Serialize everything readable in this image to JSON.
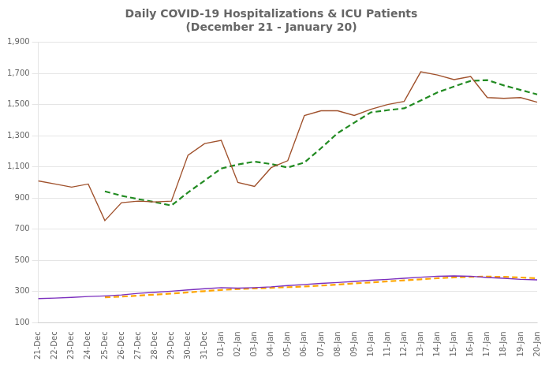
{
  "chart_data": {
    "type": "line",
    "title": "Daily COVID-19 Hospitalizations & ICU Patients",
    "subtitle": "(December 21 - January 20)",
    "categories": [
      "21-Dec",
      "22-Dec",
      "23-Dec",
      "24-Dec",
      "25-Dec",
      "26-Dec",
      "27-Dec",
      "28-Dec",
      "29-Dec",
      "30-Dec",
      "31-Dec",
      "01-Jan",
      "02-Jan",
      "03-Jan",
      "04-Jan",
      "05-Jan",
      "06-Jan",
      "07-Jan",
      "08-Jan",
      "09-Jan",
      "10-Jan",
      "11-Jan",
      "12-Jan",
      "13-Jan",
      "14-Jan",
      "15-Jan",
      "16-Jan",
      "17-Jan",
      "18-Jan",
      "19-Jan",
      "20-Jan"
    ],
    "series": [
      {
        "color": "#A0522D",
        "line_style": "solid",
        "values": [
          1010,
          990,
          970,
          990,
          755,
          870,
          880,
          875,
          880,
          1175,
          1250,
          1270,
          1000,
          975,
          1095,
          1140,
          1430,
          1460,
          1460,
          1430,
          1470,
          1500,
          1520,
          1710,
          1690,
          1660,
          1680,
          1545,
          1540,
          1545,
          1515
        ]
      },
      {
        "color": "#228B22",
        "line_style": "dashed",
        "values": [
          null,
          null,
          null,
          null,
          943,
          915,
          893,
          874,
          852,
          936,
          1012,
          1090,
          1115,
          1134,
          1118,
          1096,
          1128,
          1220,
          1317,
          1384,
          1450,
          1464,
          1476,
          1526,
          1578,
          1616,
          1652,
          1657,
          1623,
          1594,
          1565
        ]
      },
      {
        "color": "#7B2FBE",
        "line_style": "solid",
        "values": [
          255,
          258,
          262,
          268,
          272,
          278,
          288,
          295,
          302,
          310,
          318,
          325,
          322,
          325,
          330,
          338,
          345,
          352,
          358,
          365,
          372,
          378,
          385,
          392,
          398,
          400,
          398,
          390,
          385,
          378,
          375
        ]
      },
      {
        "color": "#FFA500",
        "line_style": "dashed",
        "values": [
          null,
          null,
          null,
          null,
          263,
          267.6,
          273.6,
          280.2,
          287,
          294.6,
          302.6,
          310,
          315.4,
          320,
          324,
          328,
          332,
          338,
          344.6,
          351.6,
          358.4,
          365,
          371.6,
          378.4,
          385,
          390.6,
          394.6,
          395.6,
          394.2,
          390.2,
          385.2
        ]
      }
    ],
    "ylim": [
      100,
      1900
    ],
    "yticks": [
      100,
      300,
      500,
      700,
      900,
      {
        "value": 1100,
        "label": "1,100"
      },
      {
        "value": 1300,
        "label": "1,300"
      },
      {
        "value": 1500,
        "label": "1,500"
      },
      {
        "value": 1700,
        "label": "1,700"
      },
      {
        "value": 1900,
        "label": "1,900"
      }
    ],
    "grid": "y"
  }
}
